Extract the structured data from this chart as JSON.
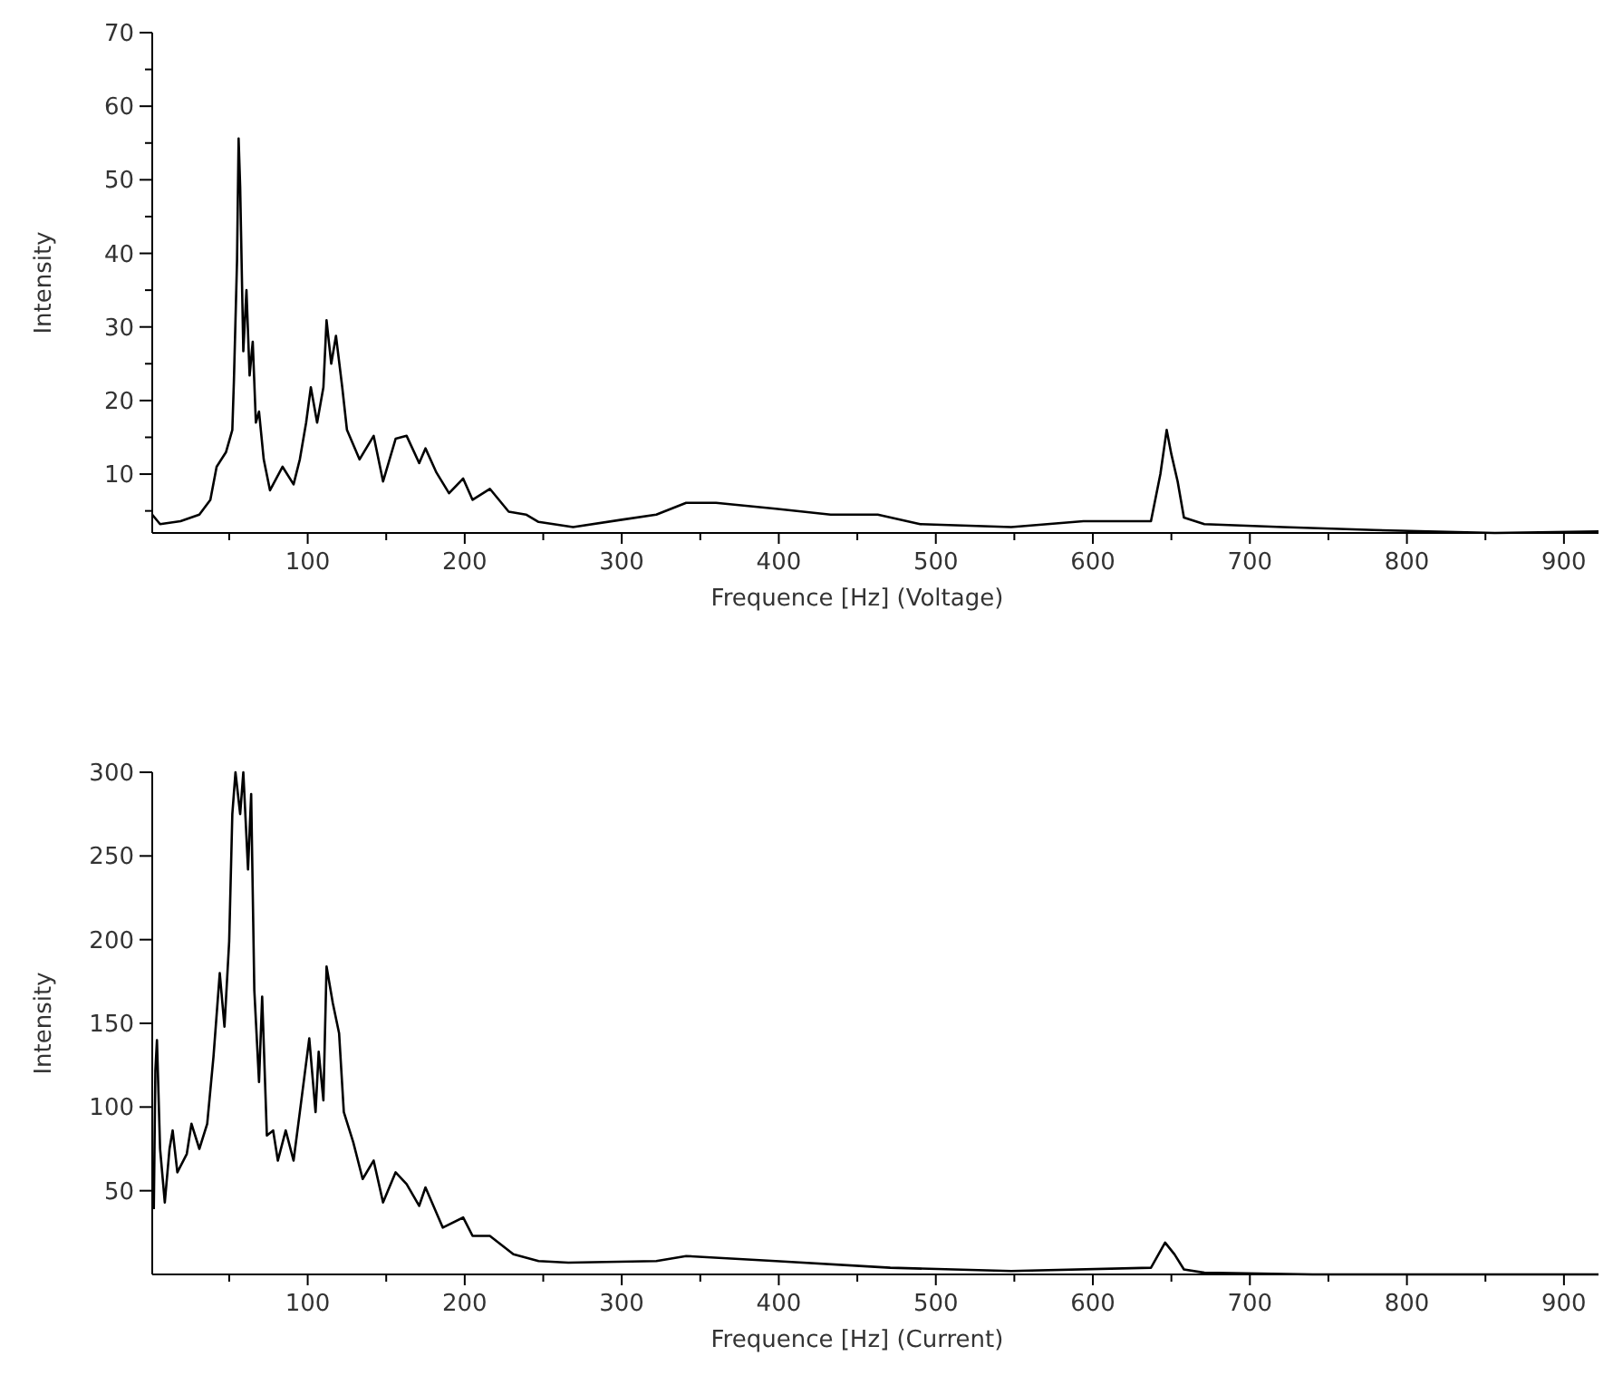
{
  "chart_data": [
    {
      "type": "line",
      "xlabel": "Frequence [Hz] (Voltage)",
      "ylabel": "Intensity",
      "xlim": [
        1,
        922
      ],
      "ylim": [
        2,
        70
      ],
      "xticks": [
        {
          "value": 50,
          "label": null
        },
        100,
        {
          "value": 150,
          "label": null
        },
        200,
        {
          "value": 250,
          "label": null
        },
        300,
        {
          "value": 350,
          "label": null
        },
        400,
        {
          "value": 450,
          "label": null
        },
        500,
        {
          "value": 550,
          "label": null
        },
        600,
        {
          "value": 650,
          "label": null
        },
        700,
        {
          "value": 750,
          "label": null
        },
        800,
        {
          "value": 850,
          "label": null
        },
        900
      ],
      "yticks": [
        {
          "value": 5,
          "label": null
        },
        10,
        {
          "value": 15,
          "label": null
        },
        20,
        {
          "value": 25,
          "label": null
        },
        30,
        {
          "value": 35,
          "label": null
        },
        40,
        {
          "value": 45,
          "label": null
        },
        50,
        {
          "value": 55,
          "label": null
        },
        60,
        {
          "value": 65,
          "label": null
        },
        70
      ],
      "grid": false,
      "marker": "none",
      "line_style": "solid",
      "series": [
        {
          "color": "#000000",
          "x": [
            1,
            6,
            19,
            31,
            38,
            42,
            48,
            52,
            53,
            55,
            56,
            57,
            59,
            61,
            63,
            65,
            67,
            69,
            72,
            76,
            84,
            91,
            95,
            99,
            102,
            106,
            110,
            112,
            115,
            118,
            122,
            125,
            133,
            142,
            148,
            156,
            163,
            171,
            175,
            182,
            190,
            199,
            205,
            216,
            228,
            239,
            247,
            269,
            300,
            322,
            341,
            360,
            398,
            433,
            463,
            490,
            548,
            594,
            637,
            643,
            647,
            650,
            654,
            658,
            671,
            721,
            779,
            856,
            922
          ],
          "values": [
            4.5,
            3.2,
            3.6,
            4.5,
            6.5,
            11,
            13,
            16,
            22.6,
            39,
            55.6,
            49,
            26.7,
            35,
            23.4,
            28,
            17,
            18.5,
            12,
            7.8,
            11,
            8.6,
            12,
            17,
            21.8,
            17,
            21.8,
            30.9,
            25,
            28.8,
            21.8,
            16,
            12,
            15.2,
            9,
            14.8,
            15.2,
            11.5,
            13.5,
            10.2,
            7.4,
            9.4,
            6.5,
            8,
            4.9,
            4.5,
            3.5,
            2.8,
            3.8,
            4.5,
            6.1,
            6.1,
            5.3,
            4.5,
            4.5,
            3.2,
            2.8,
            3.6,
            3.6,
            10,
            16,
            12.7,
            9,
            4.1,
            3.2,
            2.8,
            2.4,
            2,
            2.2
          ]
        }
      ]
    },
    {
      "type": "line",
      "xlabel": "Frequence [Hz] (Current)",
      "ylabel": "Intensity",
      "xlim": [
        1,
        922
      ],
      "ylim": [
        0,
        300
      ],
      "xticks": [
        {
          "value": 50,
          "label": null
        },
        100,
        {
          "value": 150,
          "label": null
        },
        200,
        {
          "value": 250,
          "label": null
        },
        300,
        {
          "value": 350,
          "label": null
        },
        400,
        {
          "value": 450,
          "label": null
        },
        500,
        {
          "value": 550,
          "label": null
        },
        600,
        {
          "value": 650,
          "label": null
        },
        700,
        {
          "value": 750,
          "label": null
        },
        800,
        {
          "value": 850,
          "label": null
        },
        900
      ],
      "yticks": [
        50,
        100,
        150,
        200,
        250,
        300
      ],
      "grid": false,
      "marker": "none",
      "line_style": "solid",
      "series": [
        {
          "color": "#000000",
          "x": [
            2,
            3,
            4,
            6,
            9,
            12,
            14,
            17,
            23,
            26,
            31,
            36,
            40,
            44,
            47,
            50,
            52,
            54,
            57,
            59,
            62,
            64,
            66,
            69,
            71,
            74,
            78,
            81,
            86,
            91,
            95,
            101,
            105,
            107,
            110,
            112,
            116,
            120,
            123,
            129,
            135,
            142,
            148,
            156,
            163,
            171,
            175,
            186,
            199,
            205,
            216,
            231,
            247,
            266,
            322,
            341,
            398,
            471,
            548,
            637,
            646,
            652,
            658,
            671,
            740,
            922
          ],
          "values": [
            39,
            122,
            140,
            75,
            43,
            75,
            86,
            61,
            72,
            90,
            75,
            90,
            130,
            180,
            148,
            199,
            275,
            300,
            275,
            300,
            242,
            287,
            170,
            115,
            166,
            83,
            86,
            68,
            86,
            68,
            97,
            141,
            97,
            133,
            104,
            184,
            162,
            144,
            97,
            79,
            57,
            68,
            43,
            61,
            54,
            41,
            52,
            28,
            34,
            23,
            23,
            12,
            8,
            7,
            8,
            11,
            8,
            4,
            2,
            4,
            19,
            12,
            3,
            1,
            0,
            0
          ]
        }
      ]
    }
  ]
}
